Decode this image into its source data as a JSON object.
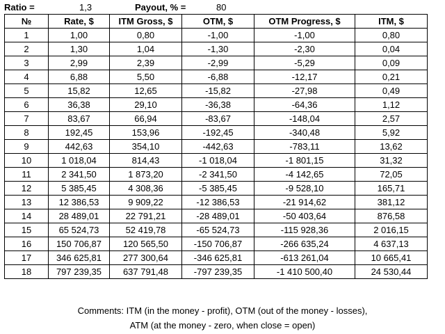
{
  "params": {
    "ratio_label": "Ratio =",
    "ratio_value": "1,3",
    "payout_label": "Payout, % =",
    "payout_value": "80"
  },
  "table": {
    "headers": [
      "№",
      "Rate, $",
      "ITM Gross, $",
      "OTM, $",
      "OTM Progress, $",
      "ITM, $"
    ],
    "rows": [
      [
        "1",
        "1,00",
        "0,80",
        "-1,00",
        "-1,00",
        "0,80"
      ],
      [
        "2",
        "1,30",
        "1,04",
        "-1,30",
        "-2,30",
        "0,04"
      ],
      [
        "3",
        "2,99",
        "2,39",
        "-2,99",
        "-5,29",
        "0,09"
      ],
      [
        "4",
        "6,88",
        "5,50",
        "-6,88",
        "-12,17",
        "0,21"
      ],
      [
        "5",
        "15,82",
        "12,65",
        "-15,82",
        "-27,98",
        "0,49"
      ],
      [
        "6",
        "36,38",
        "29,10",
        "-36,38",
        "-64,36",
        "1,12"
      ],
      [
        "7",
        "83,67",
        "66,94",
        "-83,67",
        "-148,04",
        "2,57"
      ],
      [
        "8",
        "192,45",
        "153,96",
        "-192,45",
        "-340,48",
        "5,92"
      ],
      [
        "9",
        "442,63",
        "354,10",
        "-442,63",
        "-783,11",
        "13,62"
      ],
      [
        "10",
        "1 018,04",
        "814,43",
        "-1 018,04",
        "-1 801,15",
        "31,32"
      ],
      [
        "11",
        "2 341,50",
        "1 873,20",
        "-2 341,50",
        "-4 142,65",
        "72,05"
      ],
      [
        "12",
        "5 385,45",
        "4 308,36",
        "-5 385,45",
        "-9 528,10",
        "165,71"
      ],
      [
        "13",
        "12 386,53",
        "9 909,22",
        "-12 386,53",
        "-21 914,62",
        "381,12"
      ],
      [
        "14",
        "28 489,01",
        "22 791,21",
        "-28 489,01",
        "-50 403,64",
        "876,58"
      ],
      [
        "15",
        "65 524,73",
        "52 419,78",
        "-65 524,73",
        "-115 928,36",
        "2 016,15"
      ],
      [
        "16",
        "150 706,87",
        "120 565,50",
        "-150 706,87",
        "-266 635,24",
        "4 637,13"
      ],
      [
        "17",
        "346 625,81",
        "277 300,64",
        "-346 625,81",
        "-613 261,04",
        "10 665,41"
      ],
      [
        "18",
        "797 239,35",
        "637 791,48",
        "-797 239,35",
        "-1 410 500,40",
        "24 530,44"
      ]
    ]
  },
  "comments": {
    "line1": "Comments: ITM (in the money - profit), OTM (out of the money - losses),",
    "line2": "ATM (at the money - zero, when close = open)"
  }
}
